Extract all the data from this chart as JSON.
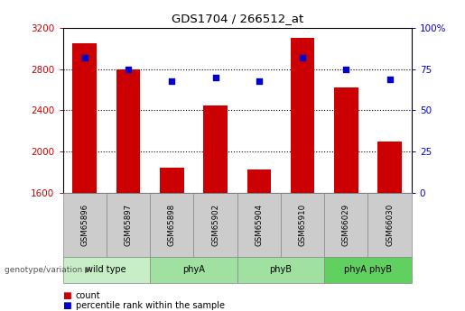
{
  "title": "GDS1704 / 266512_at",
  "samples": [
    "GSM65896",
    "GSM65897",
    "GSM65898",
    "GSM65902",
    "GSM65904",
    "GSM65910",
    "GSM66029",
    "GSM66030"
  ],
  "counts": [
    3050,
    2800,
    1840,
    2450,
    1830,
    3100,
    2620,
    2100
  ],
  "percentiles": [
    82,
    75,
    68,
    70,
    68,
    82,
    75,
    69
  ],
  "groups": [
    {
      "label": "wild type",
      "start": 0,
      "end": 2,
      "color": "#c8eec8"
    },
    {
      "label": "phyA",
      "start": 2,
      "end": 4,
      "color": "#a0e0a0"
    },
    {
      "label": "phyB",
      "start": 4,
      "end": 6,
      "color": "#a0e0a0"
    },
    {
      "label": "phyA phyB",
      "start": 6,
      "end": 8,
      "color": "#60d060"
    }
  ],
  "ylim_left": [
    1600,
    3200
  ],
  "ylim_right": [
    0,
    100
  ],
  "yticks_left": [
    1600,
    2000,
    2400,
    2800,
    3200
  ],
  "yticks_right": [
    0,
    25,
    50,
    75,
    100
  ],
  "bar_color": "#cc0000",
  "dot_color": "#0000cc",
  "left_tick_color": "#cc0000",
  "right_tick_color": "#0000cc",
  "sample_cell_color": "#cccccc",
  "group_label": "genotype/variation",
  "legend_count": "count",
  "legend_percentile": "percentile rank within the sample",
  "bar_width": 0.55
}
